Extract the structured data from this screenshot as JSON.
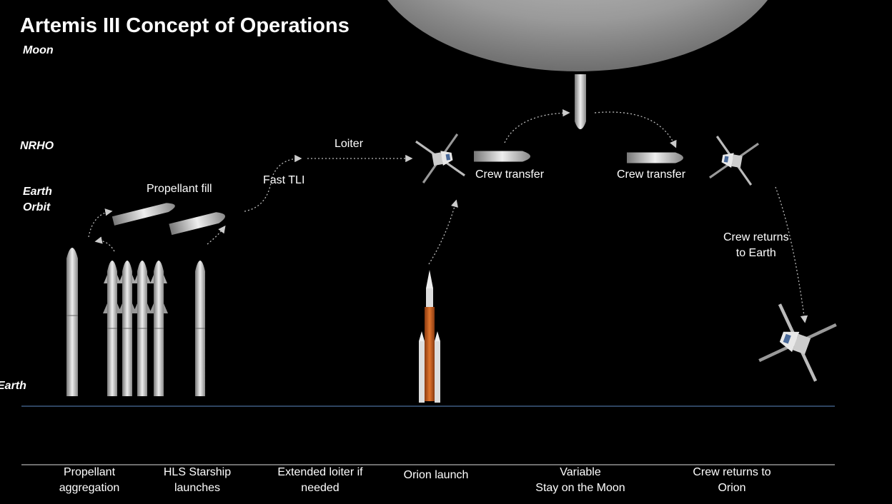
{
  "header": {
    "title": "Artemis III Concept of Operations"
  },
  "levels": {
    "moon": "Moon",
    "nrho": "NRHO",
    "earth_orbit": "Earth\nOrbit",
    "earth": "Earth"
  },
  "annotations": {
    "propellant_fill": "Propellant fill",
    "fast_tli": "Fast TLI",
    "loiter": "Loiter",
    "crew_transfer_1": "Crew transfer",
    "crew_transfer_2": "Crew transfer",
    "crew_returns_earth": "Crew returns\nto Earth"
  },
  "phases": [
    "Propellant\naggregation",
    "HLS Starship\nlaunches",
    "Extended loiter if\nneeded",
    "Orion launch",
    "Variable\nStay on the Moon",
    "Crew returns to\nOrion"
  ]
}
